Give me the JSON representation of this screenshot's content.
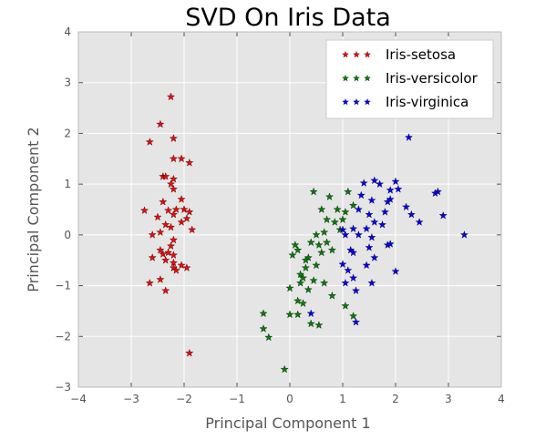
{
  "chart_data": {
    "type": "scatter",
    "title": "SVD On Iris Data",
    "xlabel": "Principal Component 1",
    "ylabel": "Principal Component 2",
    "xlim": [
      -4,
      4
    ],
    "ylim": [
      -3,
      4
    ],
    "xticks": [
      "−4",
      "−3",
      "−2",
      "−1",
      "0",
      "1",
      "2",
      "3",
      "4"
    ],
    "yticks": [
      "−3",
      "−2",
      "−1",
      "0",
      "1",
      "2",
      "3",
      "4"
    ],
    "grid": true,
    "legend_position": "top-right",
    "marker": "star",
    "colors": {
      "background": "#e5e5e5",
      "grid": "#ffffff"
    },
    "series": [
      {
        "name": "Iris-setosa",
        "color": "#ff0000",
        "points": [
          [
            -2.25,
            2.72
          ],
          [
            -2.45,
            2.18
          ],
          [
            -2.2,
            1.9
          ],
          [
            -2.65,
            1.83
          ],
          [
            -1.9,
            1.42
          ],
          [
            -2.2,
            1.5
          ],
          [
            -2.05,
            1.5
          ],
          [
            -2.4,
            1.15
          ],
          [
            -2.35,
            1.15
          ],
          [
            -2.2,
            1.1
          ],
          [
            -2.25,
            1.0
          ],
          [
            -2.2,
            0.9
          ],
          [
            -2.05,
            0.7
          ],
          [
            -2.4,
            0.65
          ],
          [
            -2.0,
            0.5
          ],
          [
            -2.75,
            0.48
          ],
          [
            -2.3,
            0.48
          ],
          [
            -2.15,
            0.5
          ],
          [
            -1.9,
            0.45
          ],
          [
            -2.2,
            0.4
          ],
          [
            -2.5,
            0.35
          ],
          [
            -2.35,
            0.2
          ],
          [
            -2.25,
            0.15
          ],
          [
            -1.95,
            0.32
          ],
          [
            -2.05,
            0.25
          ],
          [
            -2.6,
            0.0
          ],
          [
            -2.45,
            0.05
          ],
          [
            -1.85,
            0.1
          ],
          [
            -2.2,
            -0.1
          ],
          [
            -2.3,
            -0.35
          ],
          [
            -2.45,
            -0.3
          ],
          [
            -2.4,
            -0.38
          ],
          [
            -2.2,
            -0.4
          ],
          [
            -2.25,
            -0.22
          ],
          [
            -2.6,
            -0.45
          ],
          [
            -2.35,
            -0.5
          ],
          [
            -2.2,
            -0.65
          ],
          [
            -2.05,
            -0.6
          ],
          [
            -1.95,
            -0.65
          ],
          [
            -2.15,
            -0.7
          ],
          [
            -2.45,
            -0.88
          ],
          [
            -2.65,
            -0.95
          ],
          [
            -2.35,
            -1.1
          ],
          [
            -2.2,
            -0.55
          ],
          [
            -1.9,
            -2.33
          ]
        ]
      },
      {
        "name": "Iris-versicolor",
        "color": "#008000",
        "points": [
          [
            0.45,
            0.85
          ],
          [
            0.75,
            0.75
          ],
          [
            1.1,
            0.85
          ],
          [
            0.6,
            0.5
          ],
          [
            0.9,
            0.5
          ],
          [
            1.05,
            0.45
          ],
          [
            1.2,
            0.58
          ],
          [
            0.7,
            0.3
          ],
          [
            0.85,
            0.25
          ],
          [
            1.0,
            0.3
          ],
          [
            0.5,
            0.0
          ],
          [
            0.65,
            0.05
          ],
          [
            0.4,
            -0.15
          ],
          [
            0.55,
            -0.2
          ],
          [
            0.1,
            -0.2
          ],
          [
            0.05,
            -0.4
          ],
          [
            0.15,
            -0.3
          ],
          [
            0.35,
            -0.45
          ],
          [
            0.6,
            -0.35
          ],
          [
            0.8,
            -0.3
          ],
          [
            0.2,
            -0.78
          ],
          [
            0.3,
            -0.65
          ],
          [
            0.25,
            -0.85
          ],
          [
            0.45,
            -0.9
          ],
          [
            0.0,
            -1.05
          ],
          [
            0.35,
            -1.08
          ],
          [
            0.15,
            -1.3
          ],
          [
            0.25,
            -1.35
          ],
          [
            0.0,
            -1.57
          ],
          [
            0.15,
            -1.57
          ],
          [
            0.4,
            -1.75
          ],
          [
            0.55,
            -1.78
          ],
          [
            -0.5,
            -1.55
          ],
          [
            -0.5,
            -1.85
          ],
          [
            -0.4,
            -2.02
          ],
          [
            -0.1,
            -2.65
          ],
          [
            1.05,
            -1.4
          ],
          [
            1.2,
            -1.6
          ],
          [
            0.65,
            -0.95
          ],
          [
            0.8,
            -1.2
          ],
          [
            0.3,
            -0.5
          ],
          [
            0.5,
            -0.6
          ],
          [
            0.7,
            -0.15
          ],
          [
            0.95,
            0.1
          ],
          [
            0.2,
            -0.95
          ]
        ]
      },
      {
        "name": "Iris-virginica",
        "color": "#0000ff",
        "points": [
          [
            2.25,
            1.92
          ],
          [
            1.6,
            1.07
          ],
          [
            1.7,
            1.0
          ],
          [
            1.4,
            1.02
          ],
          [
            2.0,
            1.05
          ],
          [
            1.9,
            0.88
          ],
          [
            2.05,
            0.9
          ],
          [
            2.8,
            0.85
          ],
          [
            2.75,
            0.82
          ],
          [
            1.35,
            0.78
          ],
          [
            1.55,
            0.68
          ],
          [
            1.85,
            0.65
          ],
          [
            1.9,
            0.7
          ],
          [
            2.2,
            0.55
          ],
          [
            2.3,
            0.4
          ],
          [
            1.3,
            0.5
          ],
          [
            1.5,
            0.4
          ],
          [
            1.8,
            0.45
          ],
          [
            2.9,
            0.38
          ],
          [
            2.45,
            0.25
          ],
          [
            1.6,
            0.25
          ],
          [
            1.75,
            0.2
          ],
          [
            1.2,
            0.12
          ],
          [
            1.45,
            0.12
          ],
          [
            1.05,
            0.0
          ],
          [
            1.3,
            0.0
          ],
          [
            1.55,
            -0.05
          ],
          [
            3.3,
            0.0
          ],
          [
            1.85,
            -0.2
          ],
          [
            1.9,
            -0.18
          ],
          [
            1.15,
            -0.3
          ],
          [
            1.2,
            -0.35
          ],
          [
            1.6,
            -0.45
          ],
          [
            1.45,
            -0.6
          ],
          [
            1.0,
            -0.58
          ],
          [
            1.1,
            -0.7
          ],
          [
            1.2,
            -0.85
          ],
          [
            1.55,
            -0.95
          ],
          [
            1.05,
            -0.95
          ],
          [
            2.0,
            -0.72
          ],
          [
            1.25,
            -1.72
          ],
          [
            1.25,
            -1.1
          ],
          [
            0.4,
            -1.55
          ],
          [
            1.5,
            -0.25
          ],
          [
            1.0,
            0.1
          ]
        ]
      }
    ]
  }
}
